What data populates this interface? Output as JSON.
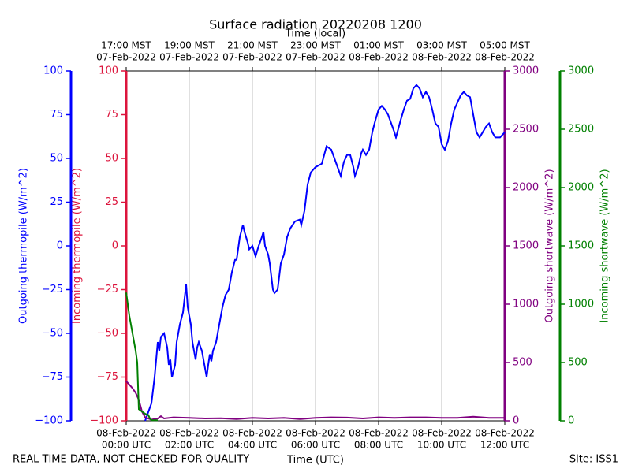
{
  "chart_data": {
    "type": "line",
    "title": "Surface radiation 20220208 1200",
    "xlabel": "Time (UTC)",
    "x2label": "Time (local)",
    "footer_left": "REAL TIME DATA, NOT CHECKED FOR QUALITY",
    "footer_right": "Site: ISS1",
    "xlim": [
      0,
      12
    ],
    "grid": true,
    "xticks": [
      {
        "value": 0,
        "label": [
          "08-Feb-2022",
          "00:00 UTC"
        ]
      },
      {
        "value": 2,
        "label": [
          "08-Feb-2022",
          "02:00 UTC"
        ]
      },
      {
        "value": 4,
        "label": [
          "08-Feb-2022",
          "04:00 UTC"
        ]
      },
      {
        "value": 6,
        "label": [
          "08-Feb-2022",
          "06:00 UTC"
        ]
      },
      {
        "value": 8,
        "label": [
          "08-Feb-2022",
          "08:00 UTC"
        ]
      },
      {
        "value": 10,
        "label": [
          "08-Feb-2022",
          "10:00 UTC"
        ]
      },
      {
        "value": 12,
        "label": [
          "08-Feb-2022",
          "12:00 UTC"
        ]
      }
    ],
    "x2ticks": [
      {
        "value": 0,
        "label": [
          "17:00 MST",
          "07-Feb-2022"
        ]
      },
      {
        "value": 2,
        "label": [
          "19:00 MST",
          "07-Feb-2022"
        ]
      },
      {
        "value": 4,
        "label": [
          "21:00 MST",
          "07-Feb-2022"
        ]
      },
      {
        "value": 6,
        "label": [
          "23:00 MST",
          "07-Feb-2022"
        ]
      },
      {
        "value": 8,
        "label": [
          "01:00 MST",
          "08-Feb-2022"
        ]
      },
      {
        "value": 10,
        "label": [
          "03:00 MST",
          "08-Feb-2022"
        ]
      },
      {
        "value": 12,
        "label": [
          "05:00 MST",
          "08-Feb-2022"
        ]
      }
    ],
    "axes": [
      {
        "label": "Outgoing thermopile (W/m^2)",
        "color": "#0000ff",
        "ylim": [
          -100,
          100
        ],
        "yticks": [
          {
            "value": -100,
            "label": "−100"
          },
          {
            "value": -75,
            "label": "−75"
          },
          {
            "value": -50,
            "label": "−50"
          },
          {
            "value": -25,
            "label": "−25"
          },
          0,
          25,
          50,
          75,
          100
        ]
      },
      {
        "label": "Incoming thermopile (W/m^2)",
        "color": "#dc143c",
        "ylim": [
          -100,
          100
        ],
        "yticks": [
          {
            "value": -100,
            "label": "−100"
          },
          {
            "value": -75,
            "label": "−75"
          },
          {
            "value": -50,
            "label": "−50"
          },
          {
            "value": -25,
            "label": "−25"
          },
          0,
          25,
          50,
          75,
          100
        ]
      },
      {
        "label": "Outgoing shortwave (W/m^2)",
        "color": "#800080",
        "ylim": [
          0,
          3000
        ],
        "yticks": [
          0,
          500,
          1000,
          1500,
          2000,
          2500,
          3000
        ]
      },
      {
        "label": "Incoming shortwave (W/m^2)",
        "color": "#008000",
        "ylim": [
          0,
          3000
        ],
        "yticks": [
          0,
          500,
          1000,
          1500,
          2000,
          2500,
          3000
        ]
      }
    ],
    "series": [
      {
        "color": "#0000ff",
        "axis": 0,
        "x": [
          0.6,
          0.8,
          0.9,
          1.0,
          1.05,
          1.1,
          1.2,
          1.3,
          1.35,
          1.4,
          1.45,
          1.55,
          1.6,
          1.7,
          1.8,
          1.85,
          1.9,
          1.95,
          2.05,
          2.1,
          2.15,
          2.2,
          2.25,
          2.3,
          2.4,
          2.5,
          2.55,
          2.6,
          2.65,
          2.7,
          2.75,
          2.85,
          2.95,
          3.05,
          3.15,
          3.25,
          3.35,
          3.45,
          3.5,
          3.6,
          3.7,
          3.75,
          3.85,
          3.9,
          4.0,
          4.1,
          4.2,
          4.3,
          4.35,
          4.4,
          4.5,
          4.55,
          4.65,
          4.7,
          4.8,
          4.9,
          5.0,
          5.1,
          5.2,
          5.35,
          5.5,
          5.55,
          5.65,
          5.75,
          5.85,
          6.0,
          6.1,
          6.2,
          6.35,
          6.5,
          6.6,
          6.7,
          6.8,
          6.9,
          7.0,
          7.1,
          7.2,
          7.25,
          7.35,
          7.45,
          7.5,
          7.6,
          7.7,
          7.8,
          7.9,
          8.0,
          8.1,
          8.2,
          8.3,
          8.4,
          8.5,
          8.55,
          8.7,
          8.8,
          8.9,
          9.0,
          9.1,
          9.2,
          9.3,
          9.4,
          9.5,
          9.6,
          9.7,
          9.8,
          9.9,
          10.0,
          10.1,
          10.2,
          10.3,
          10.4,
          10.5,
          10.6,
          10.7,
          10.8,
          10.9,
          11.0,
          11.1,
          11.2,
          11.3,
          11.4,
          11.5,
          11.6,
          11.7,
          11.85,
          12.0
        ],
        "values": [
          -100,
          -90,
          -75,
          -55,
          -60,
          -52,
          -50,
          -58,
          -68,
          -65,
          -75,
          -68,
          -55,
          -45,
          -38,
          -30,
          -22,
          -35,
          -45,
          -55,
          -60,
          -65,
          -58,
          -55,
          -60,
          -70,
          -75,
          -68,
          -62,
          -66,
          -60,
          -55,
          -45,
          -35,
          -28,
          -25,
          -15,
          -8,
          -8,
          5,
          12,
          8,
          2,
          -2,
          0,
          -6,
          0,
          5,
          8,
          0,
          -5,
          -10,
          -25,
          -27,
          -25,
          -10,
          -5,
          5,
          10,
          14,
          15,
          12,
          20,
          35,
          42,
          45,
          46,
          47,
          57,
          55,
          50,
          45,
          40,
          48,
          52,
          52,
          45,
          40,
          45,
          53,
          55,
          52,
          55,
          65,
          72,
          78,
          80,
          78,
          75,
          70,
          65,
          62,
          72,
          78,
          83,
          84,
          90,
          92,
          90,
          85,
          88,
          85,
          78,
          70,
          68,
          58,
          55,
          60,
          70,
          78,
          82,
          86,
          88,
          86,
          85,
          75,
          65,
          62,
          65,
          68,
          70,
          65,
          62,
          62,
          65
        ]
      },
      {
        "color": "#800080",
        "axis": 2,
        "x": [
          0,
          0.2,
          0.3,
          0.4,
          0.5,
          0.6,
          0.8,
          1.0,
          1.1,
          1.2,
          1.5,
          2,
          2.5,
          3,
          3.5,
          4,
          4.5,
          5,
          5.5,
          6,
          6.5,
          7,
          7.5,
          8,
          8.5,
          9,
          9.5,
          10,
          10.5,
          11,
          11.5,
          12
        ],
        "values": [
          340,
          280,
          240,
          180,
          80,
          30,
          10,
          20,
          40,
          20,
          30,
          25,
          20,
          22,
          15,
          25,
          20,
          25,
          15,
          25,
          30,
          28,
          20,
          30,
          25,
          30,
          30,
          25,
          25,
          35,
          25,
          25
        ]
      },
      {
        "color": "#008000",
        "axis": 3,
        "x": [
          0,
          0.1,
          0.2,
          0.3,
          0.35,
          0.4,
          0.5,
          0.6,
          0.7,
          0.75,
          0.8,
          1.0
        ],
        "values": [
          1100,
          900,
          750,
          600,
          500,
          100,
          80,
          60,
          50,
          20,
          5,
          5
        ]
      }
    ]
  }
}
